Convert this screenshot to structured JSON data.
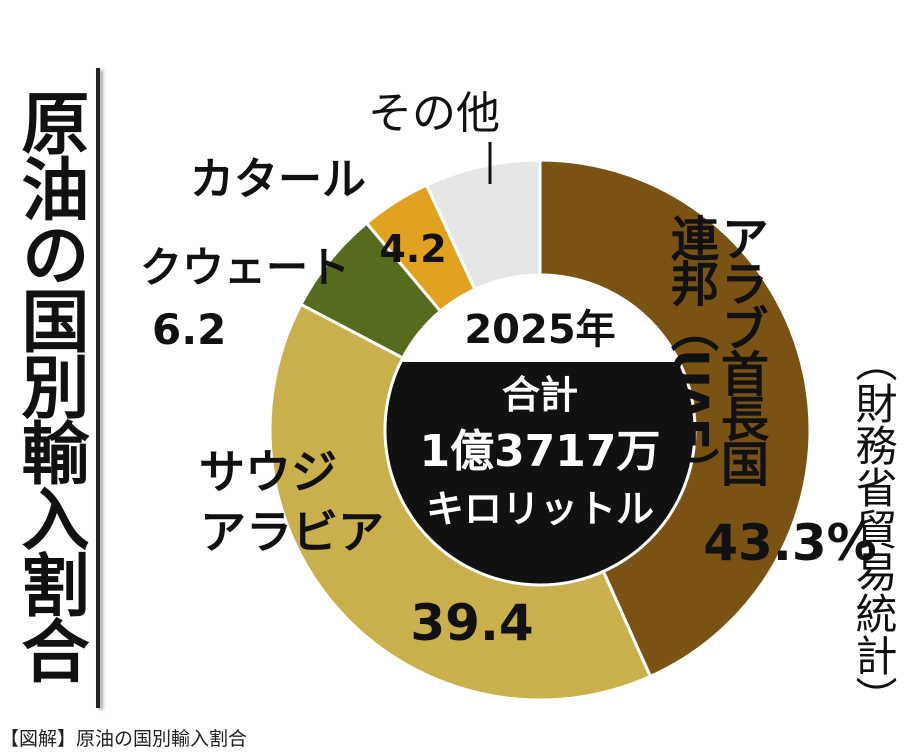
{
  "title": "原油の国別輸入割合",
  "source": "（財務省貿易統計）",
  "caption": "【図解】原油の国別輸入割合",
  "center": {
    "year": "2025年",
    "total_label": "合計",
    "total_value": "1億3717万",
    "total_unit": "キロリットル"
  },
  "chart_data": {
    "type": "pie",
    "variant": "donut",
    "slices": [
      {
        "label": "アラブ首長国連邦（UAE）",
        "value": 43.3,
        "display": "43.3%",
        "color": "#7a5214"
      },
      {
        "label": "サウジアラビア",
        "value": 39.4,
        "display": "39.4",
        "color": "#c9b04c"
      },
      {
        "label": "クウェート",
        "value": 6.2,
        "display": "6.2",
        "color": "#566b1d"
      },
      {
        "label": "カタール",
        "value": 4.2,
        "display": "4.2",
        "color": "#e0a21f"
      },
      {
        "label": "その他",
        "value": 6.9,
        "display": "",
        "color": "#e6e6e6"
      }
    ]
  }
}
